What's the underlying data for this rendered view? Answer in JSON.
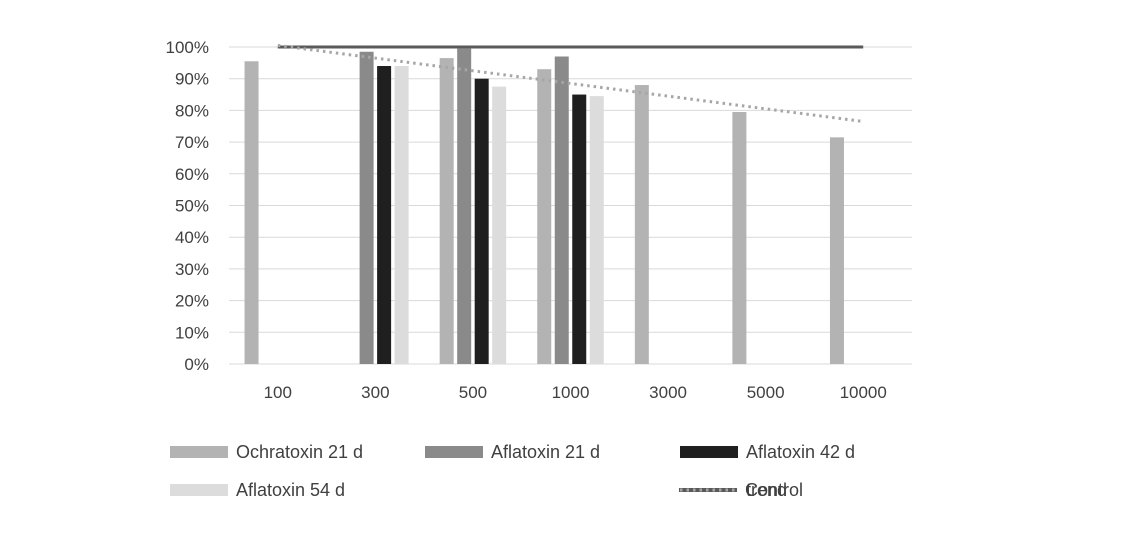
{
  "chart_data": {
    "type": "bar",
    "categories": [
      "100",
      "300",
      "500",
      "1000",
      "3000",
      "5000",
      "10000"
    ],
    "series": [
      {
        "name": "Ochratoxin 21 d",
        "color": "#b3b3b3",
        "values": [
          95.5,
          null,
          96.5,
          93,
          88,
          79.5,
          71.5
        ]
      },
      {
        "name": "Aflatoxin 21 d",
        "color": "#8a8a8a",
        "values": [
          null,
          98.5,
          99.5,
          97,
          null,
          null,
          null
        ]
      },
      {
        "name": "Aflatoxin 42 d",
        "color": "#1f1f1f",
        "values": [
          null,
          94,
          90,
          85,
          null,
          null,
          null
        ]
      },
      {
        "name": "Aflatoxin 54 d",
        "color": "#dcdcdc",
        "values": [
          null,
          94,
          87.5,
          84.5,
          null,
          null,
          null
        ]
      }
    ],
    "control": {
      "name": "Control",
      "value": 100,
      "color": "#5a5a5a"
    },
    "trend": {
      "name": "trend",
      "start": 100.5,
      "end": 76.5,
      "color": "#a6a6a6"
    },
    "ylim": [
      0,
      100
    ],
    "ytick_labels": [
      "0%",
      "10%",
      "20%",
      "30%",
      "40%",
      "50%",
      "60%",
      "70%",
      "80%",
      "90%",
      "100%"
    ],
    "ylabel": "",
    "xlabel": "",
    "grid": true,
    "legend_position": "bottom"
  }
}
